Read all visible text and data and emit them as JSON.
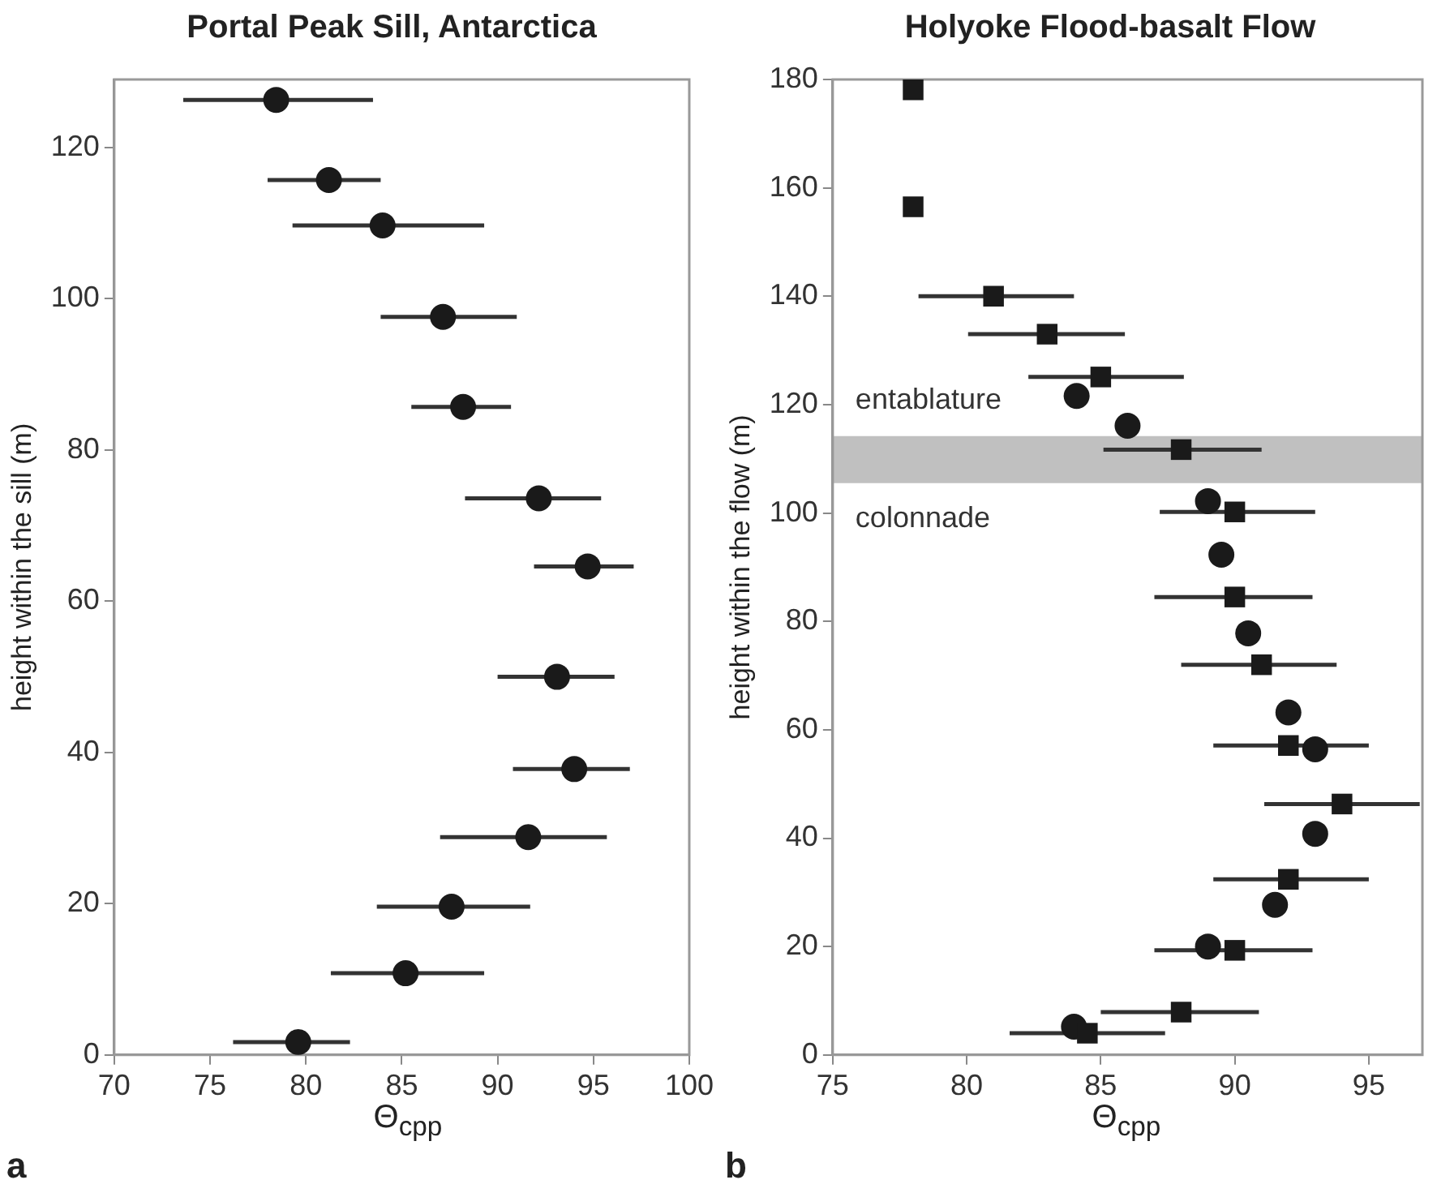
{
  "chart_data": [
    {
      "type": "scatter",
      "title": "Portal Peak Sill, Antarctica",
      "xlabel": "Θ$_{cpp}$",
      "ylabel": "height within the sill (m)",
      "xlim": [
        70,
        100
      ],
      "xticks": [
        70,
        75,
        80,
        85,
        90,
        95,
        100
      ],
      "ylim": [
        0,
        129
      ],
      "yticks": [
        0,
        20,
        40,
        60,
        80,
        100,
        120
      ],
      "annotations": [
        "a"
      ],
      "series": [
        {
          "color": "#1a1a1a",
          "marker": "circle",
          "x": [
            78.45,
            81.2,
            84.0,
            87.15,
            88.2,
            92.15,
            94.7,
            93.1,
            94.0,
            91.6,
            87.6,
            85.2,
            79.6
          ],
          "values": [
            126.3,
            115.7,
            109.7,
            97.6,
            85.7,
            73.6,
            64.6,
            50.0,
            37.8,
            28.8,
            19.6,
            10.8,
            1.7
          ],
          "xerrors": [
            [
              73.6,
              83.5
            ],
            [
              78.0,
              83.9
            ],
            [
              79.3,
              89.3
            ],
            [
              83.9,
              91.0
            ],
            [
              85.5,
              90.7
            ],
            [
              88.3,
              95.4
            ],
            [
              91.9,
              97.1
            ],
            [
              90.0,
              96.1
            ],
            [
              90.8,
              96.9
            ],
            [
              87.0,
              95.7
            ],
            [
              83.7,
              91.7
            ],
            [
              81.3,
              89.3
            ],
            [
              76.2,
              82.3
            ]
          ]
        }
      ]
    },
    {
      "type": "scatter",
      "title": "Holyoke Flood-basalt Flow",
      "xlabel": "Θ$_{cpp}$",
      "ylabel": "height within the flow (m)",
      "xlim": [
        75,
        97
      ],
      "xticks": [
        75,
        80,
        85,
        90,
        95
      ],
      "ylim": [
        0,
        180
      ],
      "yticks": [
        0,
        20,
        40,
        60,
        80,
        100,
        120,
        140,
        160,
        180
      ],
      "bands": [
        {
          "axis": "y",
          "from": 105.5,
          "to": 114.2,
          "color": "#c0c0c0"
        }
      ],
      "annotations": [
        "entablature",
        "colonnade",
        "b"
      ],
      "series": [
        {
          "color": "#1a1a1a",
          "marker": "square",
          "x": [
            78.0,
            78.0,
            81.0,
            83.0,
            85.0,
            88.0,
            90.0,
            90.0,
            91.0,
            92.0,
            94.0,
            92.0,
            90.0,
            88.0,
            84.5
          ],
          "values": [
            178.1,
            156.5,
            140,
            133,
            125.1,
            111.7,
            100.2,
            84.5,
            72.0,
            57.1,
            46.3,
            32.4,
            19.3,
            7.9,
            4.0
          ],
          "xerrors": [
            null,
            null,
            [
              78.2,
              84.0
            ],
            [
              80.05,
              85.9
            ],
            [
              82.3,
              88.1
            ],
            [
              85.1,
              91.0
            ],
            [
              87.2,
              93.0
            ],
            [
              87.0,
              92.9
            ],
            [
              88.0,
              93.8
            ],
            [
              89.2,
              95.0
            ],
            [
              91.1,
              96.9
            ],
            [
              89.2,
              95.0
            ],
            [
              87.0,
              92.9
            ],
            [
              85.0,
              90.9
            ],
            [
              81.6,
              87.4
            ]
          ]
        },
        {
          "color": "#1a1a1a",
          "marker": "circle",
          "x": [
            84.1,
            86.0,
            89.0,
            89.5,
            90.5,
            92.0,
            93.0,
            93.0,
            91.5,
            89.0,
            84.0
          ],
          "values": [
            121.6,
            116.1,
            102.2,
            92.3,
            77.8,
            63.2,
            56.4,
            40.8,
            27.7,
            20.0,
            5.2
          ]
        }
      ]
    }
  ]
}
